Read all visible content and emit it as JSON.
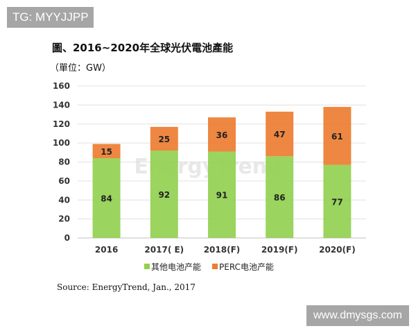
{
  "watermarks": {
    "top_left": "TG: MYYJJPP",
    "bottom_right": "www.dmysgs.com",
    "center_logo": "EnergyTrend"
  },
  "chart_data": {
    "type": "bar",
    "stacked": true,
    "title": "圖、2016~2020年全球光伏電池產能",
    "unit_label": "（單位：GW）",
    "categories": [
      "2016",
      "2017( E)",
      "2018(F)",
      "2019(F)",
      "2020(F)"
    ],
    "series": [
      {
        "name": "其他电池产能",
        "values": [
          84,
          92,
          91,
          86,
          77
        ],
        "color": "#92d050"
      },
      {
        "name": "PERC电池产能",
        "values": [
          15,
          25,
          36,
          47,
          61
        ],
        "color": "#ed7d31"
      }
    ],
    "ylim": [
      0,
      160
    ],
    "yticks": [
      0,
      20,
      40,
      60,
      80,
      100,
      120,
      140,
      160
    ],
    "grid": true,
    "legend": "bottom",
    "source": "Source: EnergyTrend, Jan., 2017"
  }
}
